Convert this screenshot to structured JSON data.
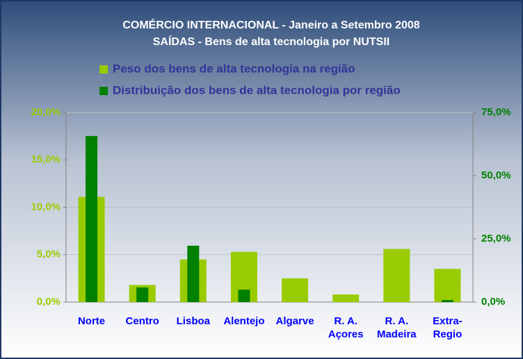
{
  "chart_data": {
    "type": "bar",
    "title": "COMÉRCIO INTERNACIONAL - Janeiro a Setembro 2008",
    "subtitle": "SAÍDAS - Bens de alta tecnologia por NUTSII",
    "categories": [
      "Norte",
      "Centro",
      "Lisboa",
      "Alentejo",
      "Algarve",
      "R. A.\nAçores",
      "R. A.\nMadeira",
      "Extra-\nRegio"
    ],
    "series": [
      {
        "name": "Peso dos bens de alta tecnologia na região",
        "color": "#99cc00",
        "values": [
          11.1,
          1.8,
          4.5,
          5.3,
          2.5,
          0.8,
          5.6,
          3.5
        ]
      },
      {
        "name": "Distribuição dos bens de alta tecnologia por região",
        "color": "#008000",
        "axis": "y2",
        "values": [
          65.7,
          5.8,
          22.3,
          4.9,
          0,
          0,
          0,
          0.8
        ]
      }
    ],
    "ylim": [
      0,
      20
    ],
    "yticks": [
      {
        "value": 0,
        "label": "0,0%"
      },
      {
        "value": 5,
        "label": "5,0%"
      },
      {
        "value": 10,
        "label": "10,0%"
      },
      {
        "value": 15,
        "label": "15,0%"
      },
      {
        "value": 20,
        "label": "20,0%"
      }
    ],
    "y2lim": [
      0,
      75
    ],
    "y2ticks": [
      {
        "value": 0,
        "label": "0,0%"
      },
      {
        "value": 25,
        "label": "25,0%"
      },
      {
        "value": 50,
        "label": "50,0%"
      },
      {
        "value": 75,
        "label": "75,0%"
      }
    ],
    "grid": true,
    "legend": "top"
  }
}
